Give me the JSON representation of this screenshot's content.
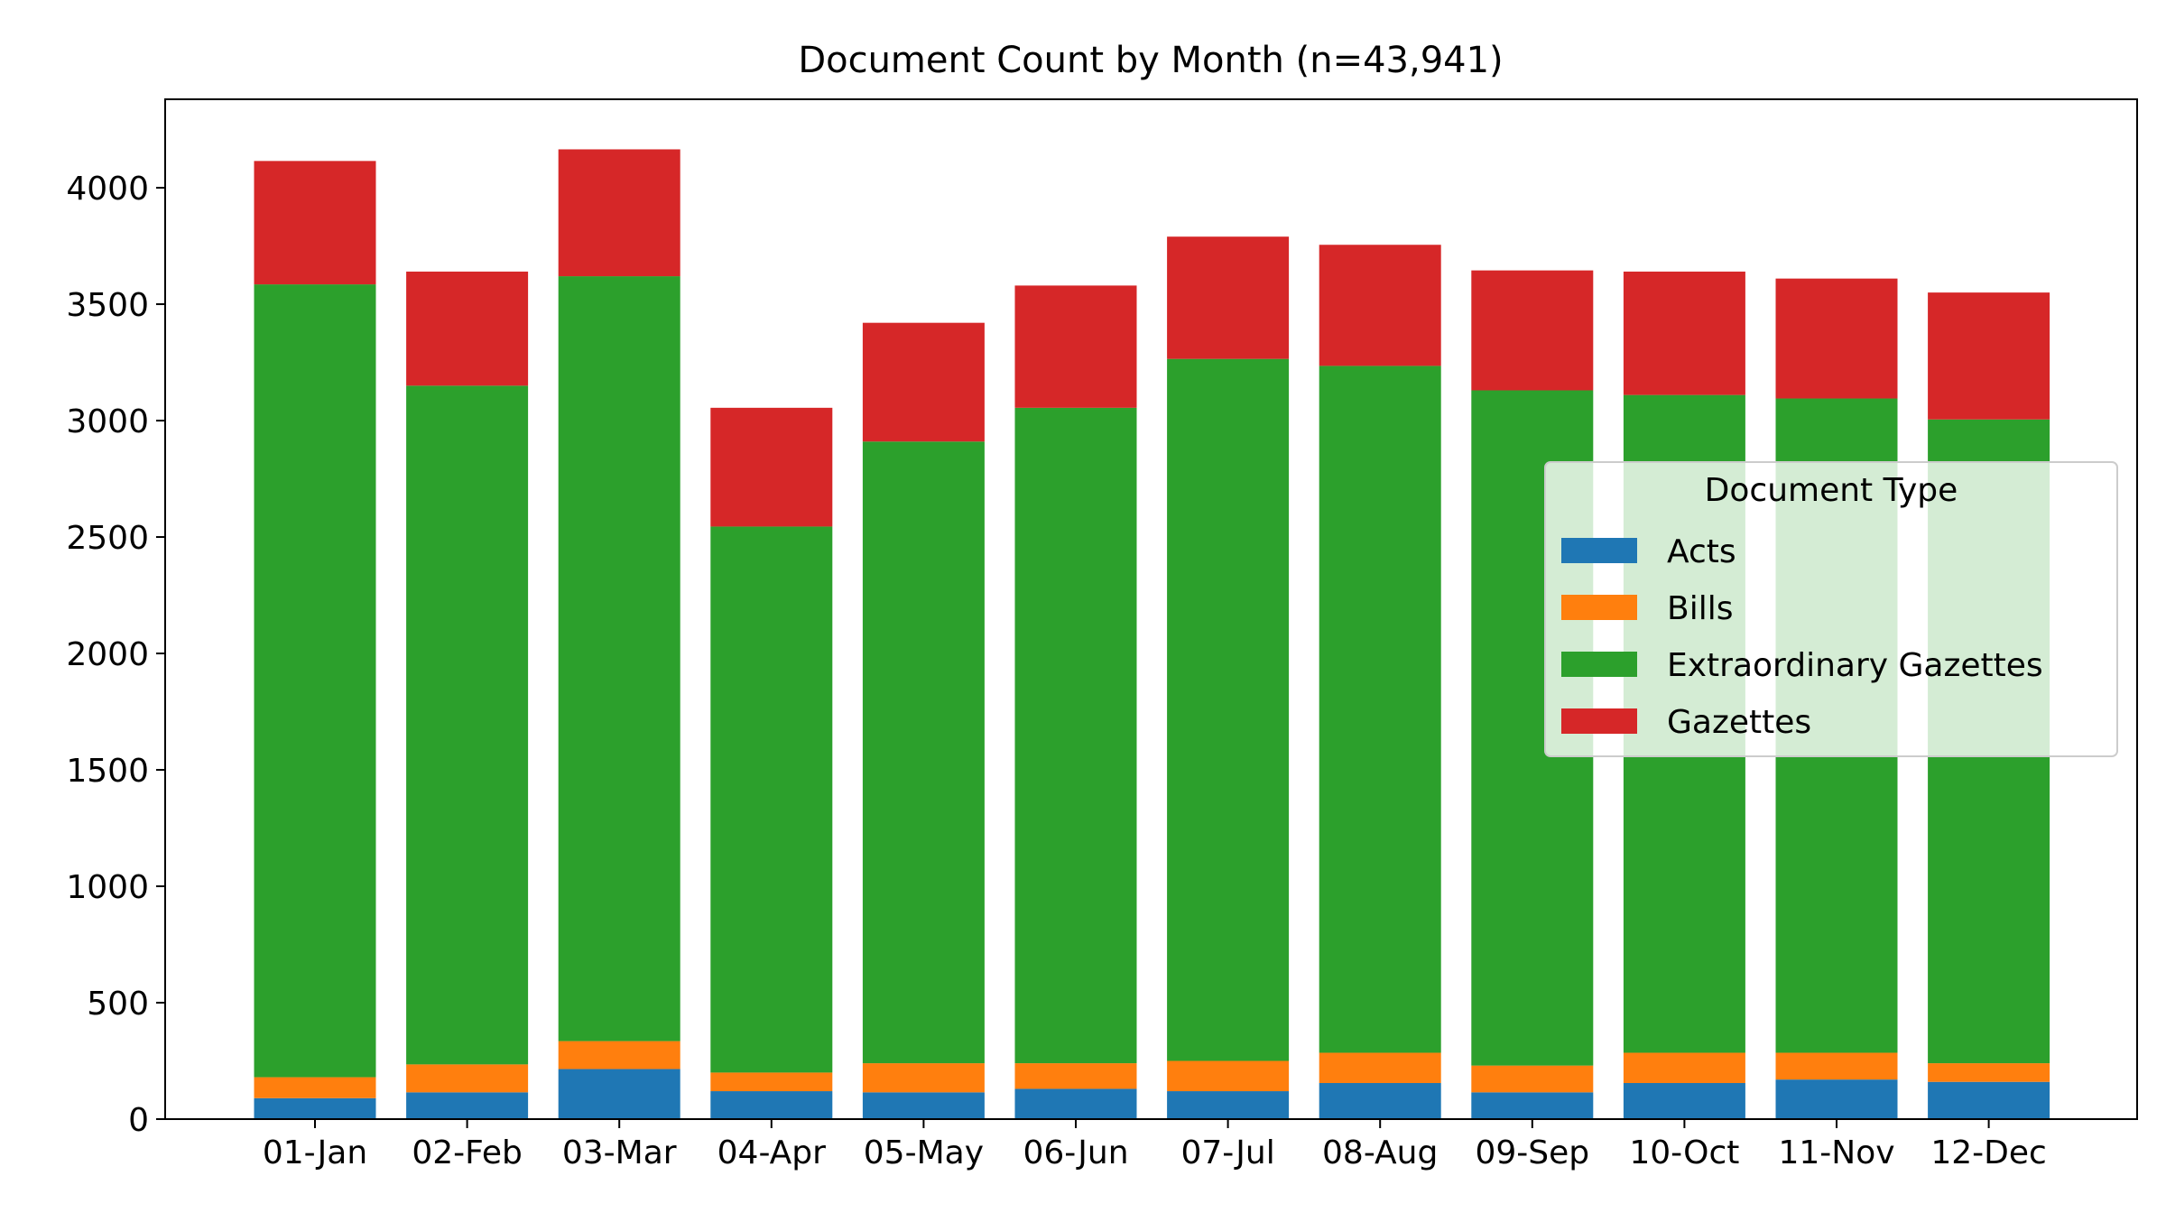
{
  "chart_data": {
    "type": "bar",
    "stacked": true,
    "title": "Document Count by Month (n=43,941)",
    "xlabel": "",
    "ylabel": "",
    "ylim": [
      0,
      4380
    ],
    "yticks": [
      0,
      500,
      1000,
      1500,
      2000,
      2500,
      3000,
      3500,
      4000
    ],
    "grid": false,
    "categories": [
      "01-Jan",
      "02-Feb",
      "03-Mar",
      "04-Apr",
      "05-May",
      "06-Jun",
      "07-Jul",
      "08-Aug",
      "09-Sep",
      "10-Oct",
      "11-Nov",
      "12-Dec"
    ],
    "legend": {
      "title": "Document Type",
      "placement": "center-right"
    },
    "series": [
      {
        "name": "Acts",
        "color": "#1f77b4",
        "values": [
          90,
          115,
          215,
          120,
          115,
          130,
          120,
          155,
          115,
          155,
          170,
          160
        ]
      },
      {
        "name": "Bills",
        "color": "#ff7f0e",
        "values": [
          90,
          120,
          120,
          80,
          125,
          110,
          130,
          130,
          115,
          130,
          115,
          80
        ]
      },
      {
        "name": "Extraordinary Gazettes",
        "color": "#2ca02c",
        "values": [
          3405,
          2915,
          3285,
          2345,
          2670,
          2815,
          3015,
          2950,
          2900,
          2825,
          2810,
          2765
        ]
      },
      {
        "name": "Gazettes",
        "color": "#d62728",
        "values": [
          530,
          490,
          545,
          510,
          510,
          525,
          525,
          520,
          515,
          530,
          515,
          545
        ]
      }
    ]
  }
}
